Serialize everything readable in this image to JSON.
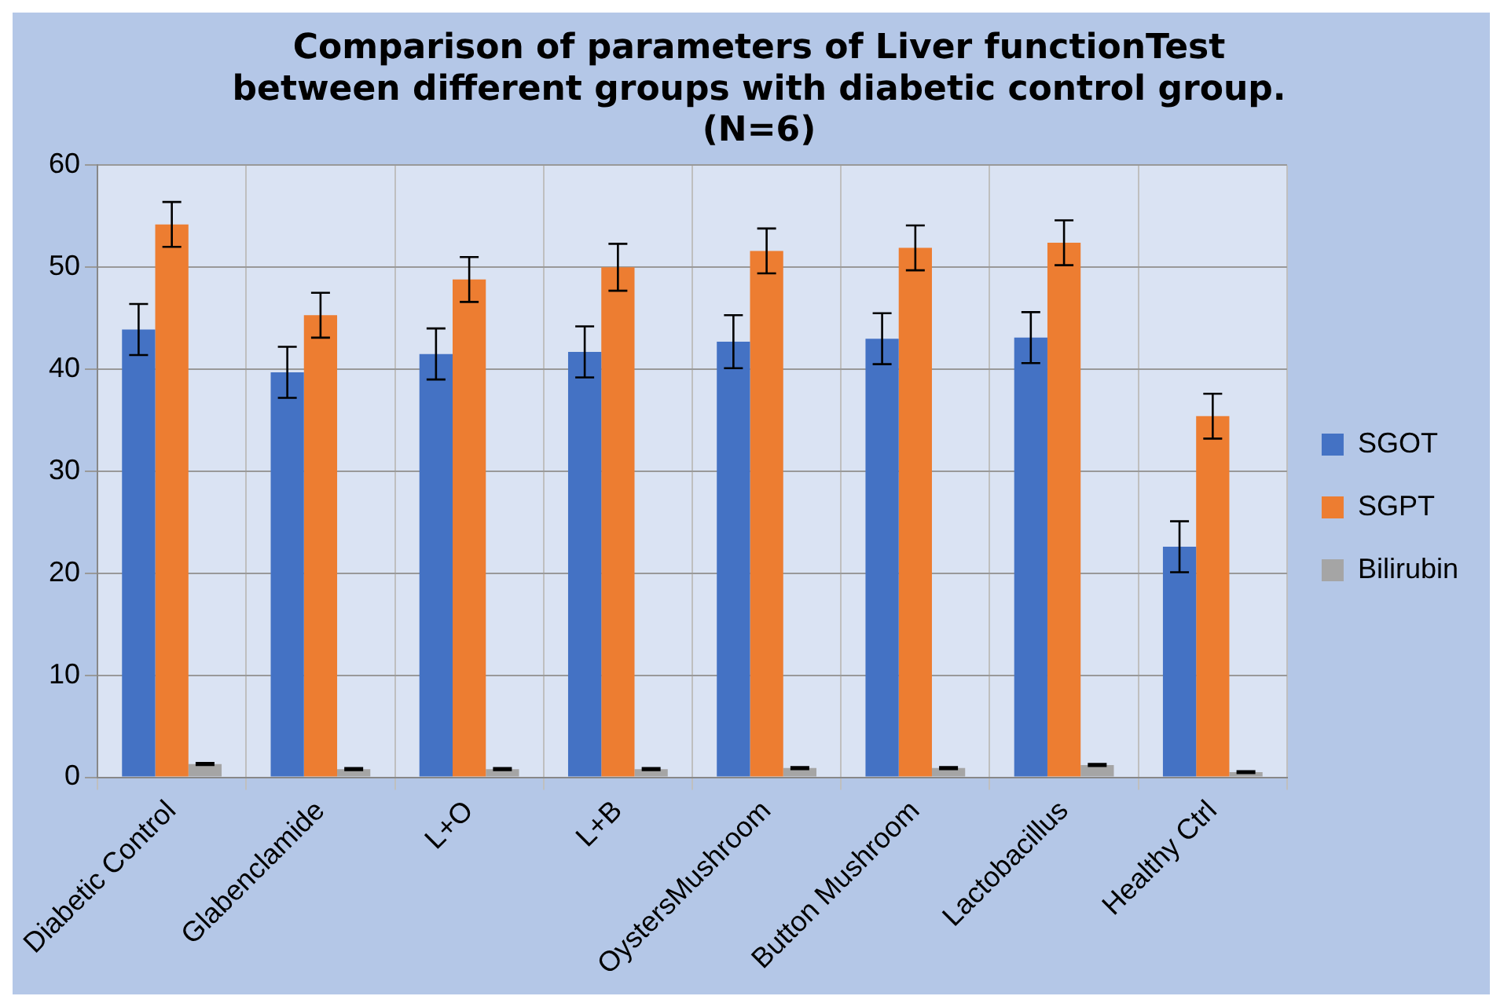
{
  "chart_data": {
    "type": "bar",
    "title": "Comparison of parameters of Liver functionTest\nbetween different groups with diabetic control group.\n(N=6)",
    "categories": [
      "Diabetic Control",
      "Glabenclamide",
      "L+O",
      "L+B",
      "OystersMushroom",
      "Button Mushroom",
      "Lactobacillus",
      "Healthy Ctrl"
    ],
    "series": [
      {
        "name": "SGOT",
        "color": "#4472c4",
        "values": [
          43.9,
          39.7,
          41.5,
          41.7,
          42.7,
          43.0,
          43.1,
          22.6
        ],
        "errors": [
          2.5,
          2.5,
          2.5,
          2.5,
          2.6,
          2.5,
          2.5,
          2.5
        ]
      },
      {
        "name": "SGPT",
        "color": "#ed7d31",
        "values": [
          54.2,
          45.3,
          48.8,
          50.0,
          51.6,
          51.9,
          52.4,
          35.4
        ],
        "errors": [
          2.2,
          2.2,
          2.2,
          2.3,
          2.2,
          2.2,
          2.2,
          2.2
        ]
      },
      {
        "name": "Bilirubin",
        "color": "#a5a5a5",
        "values": [
          1.3,
          0.8,
          0.8,
          0.8,
          0.9,
          0.9,
          1.2,
          0.5
        ],
        "errors": [
          0.1,
          0.1,
          0.1,
          0.1,
          0.1,
          0.1,
          0.1,
          0.1
        ]
      }
    ],
    "ylim": [
      0,
      60
    ],
    "yticks": [
      0,
      10,
      20,
      30,
      40,
      50,
      60
    ],
    "grid": true,
    "legend": "right"
  }
}
